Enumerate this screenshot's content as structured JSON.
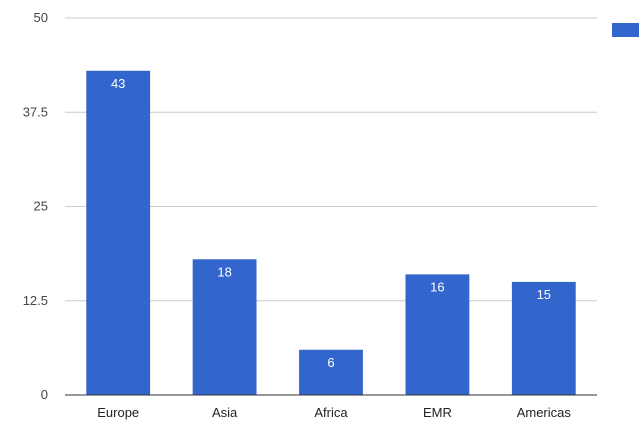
{
  "chart_data": {
    "type": "bar",
    "categories": [
      "Europe",
      "Asia",
      "Africa",
      "EMR",
      "Americas"
    ],
    "series": [
      {
        "values": [
          43,
          18,
          6,
          16,
          15
        ],
        "color": "#3366cc"
      }
    ],
    "yticks": [
      "0",
      "12.5",
      "25",
      "37.5",
      "50"
    ],
    "ylim": [
      0,
      50
    ],
    "grid": true,
    "legend": "right",
    "legend_text": ""
  }
}
